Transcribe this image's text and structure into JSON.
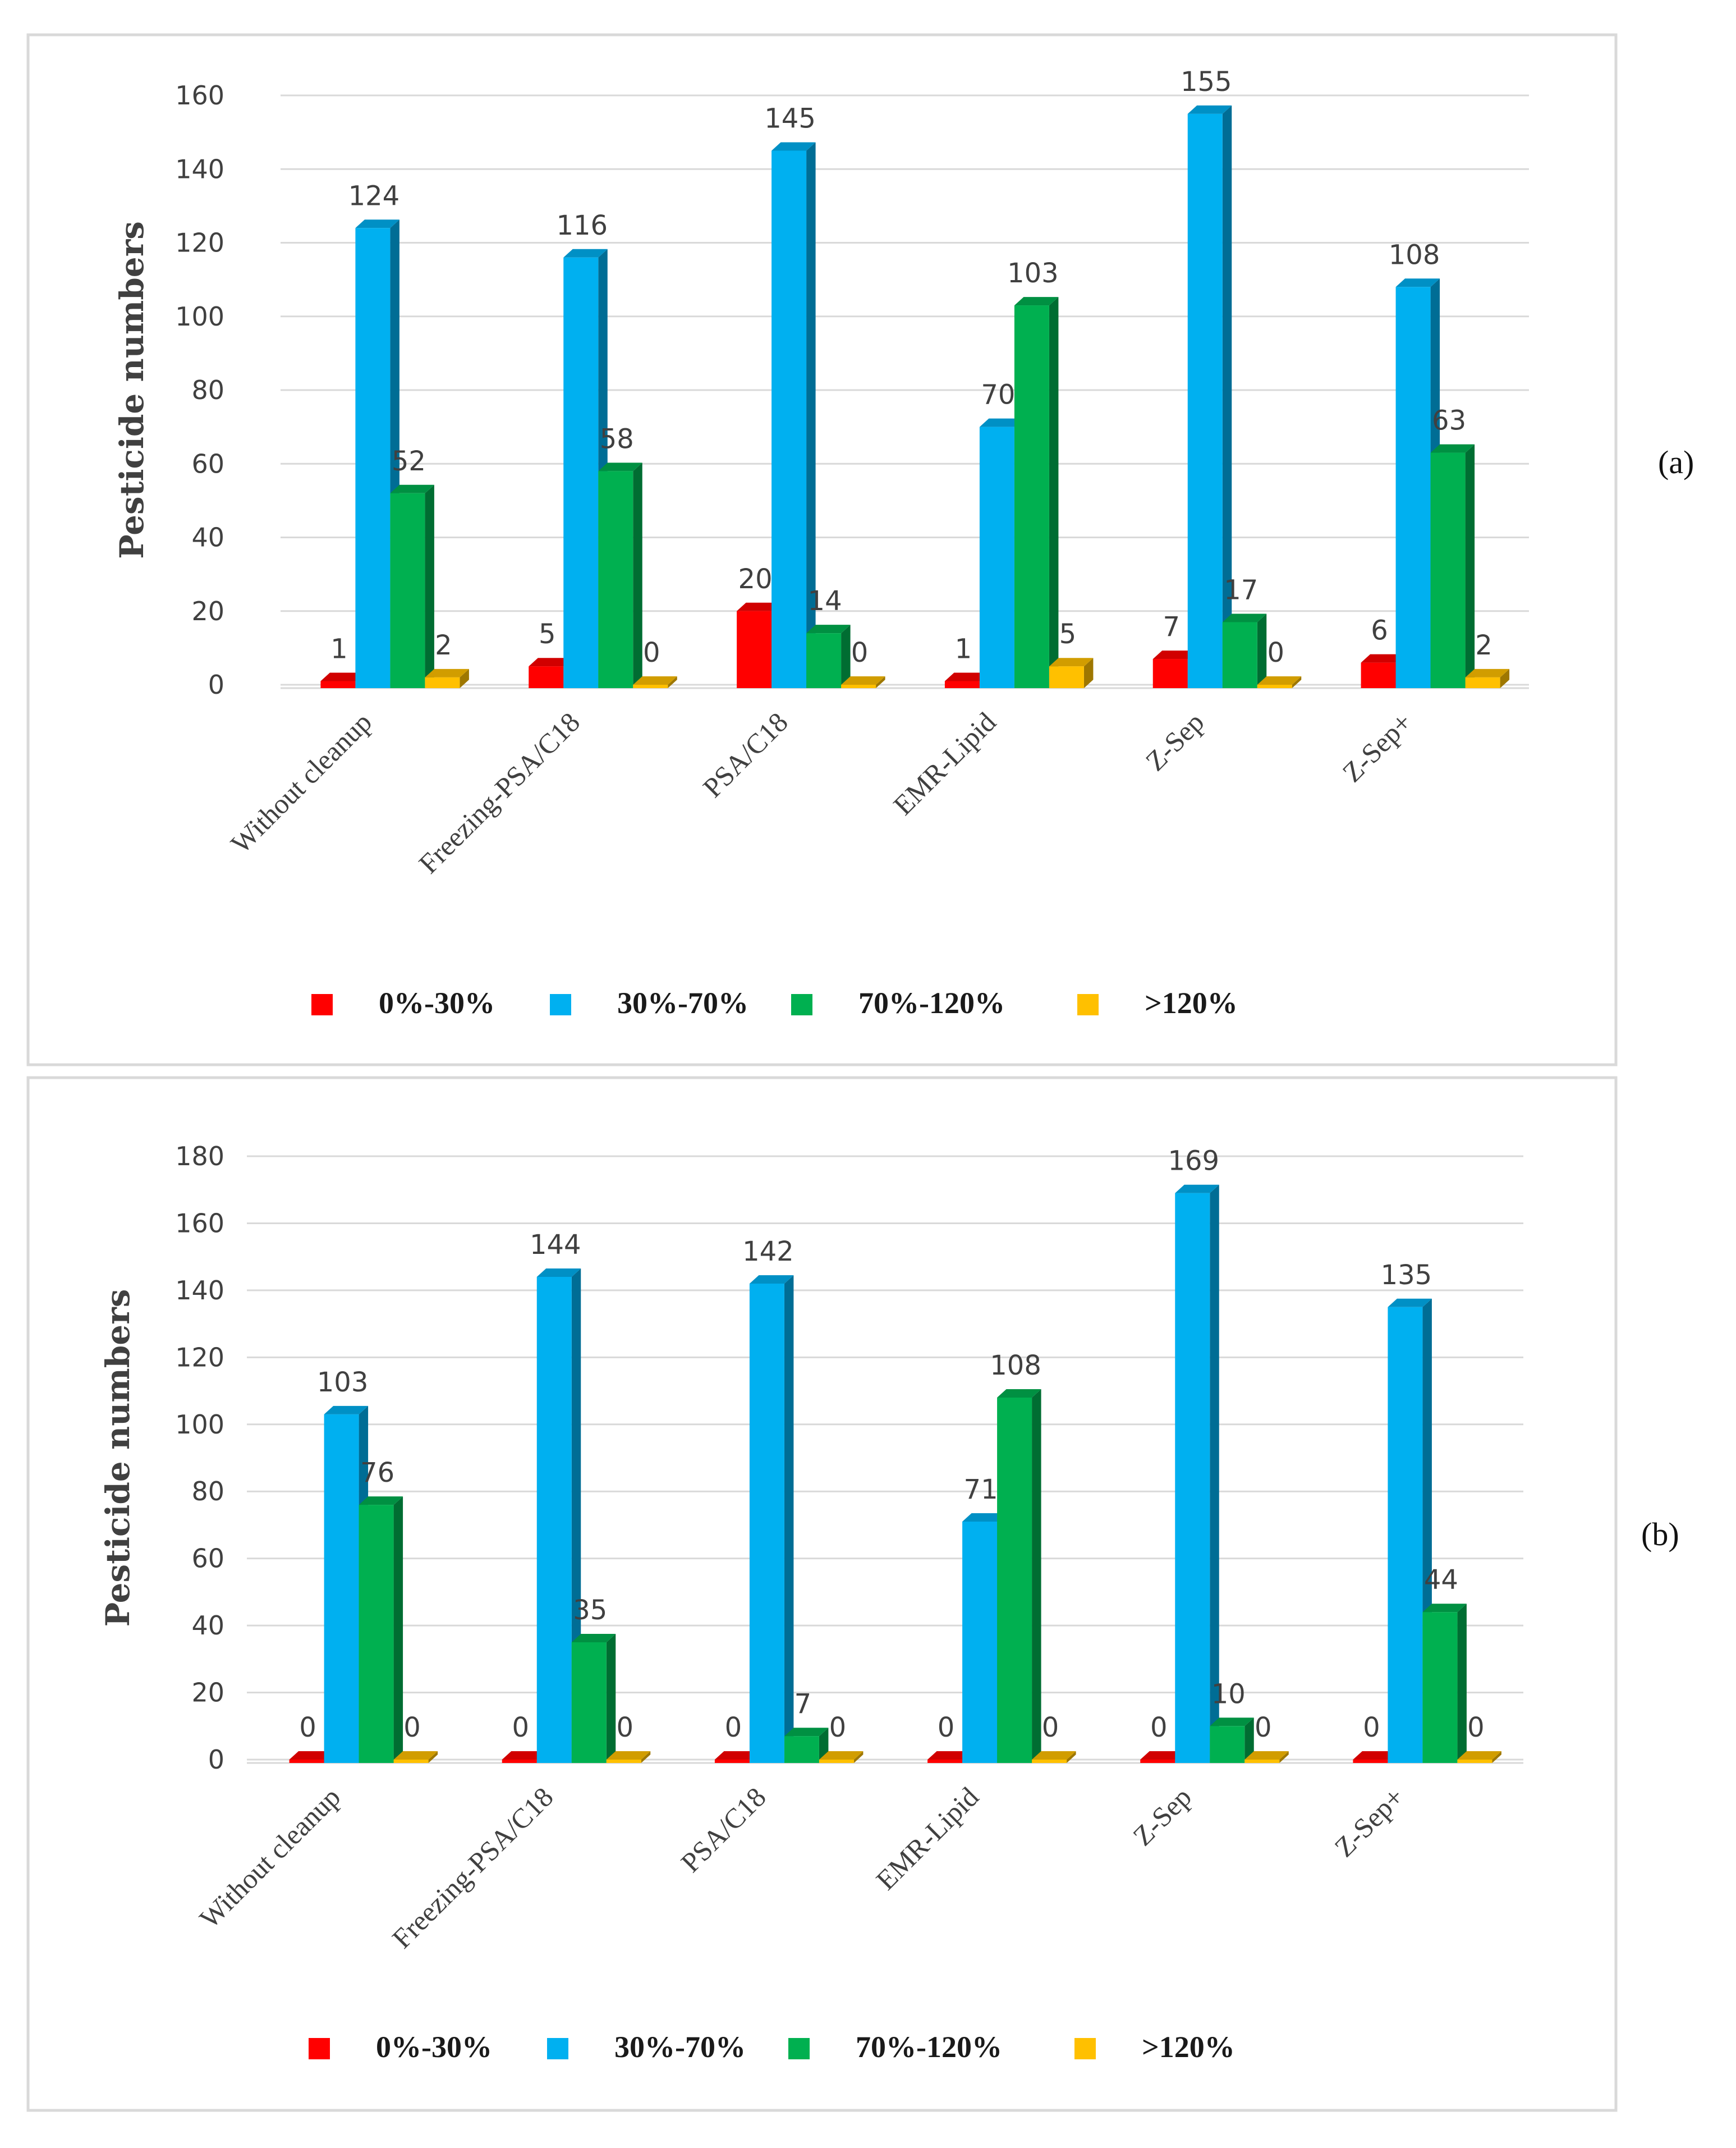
{
  "panels": [
    {
      "label": "a",
      "panel_label_text": "(a)",
      "chart_data": {
        "type": "bar",
        "ylabel": "Pesticide numbers",
        "xlabel": "",
        "ylim": [
          0,
          160
        ],
        "yticks": [
          0,
          20,
          40,
          60,
          80,
          100,
          120,
          140,
          160
        ],
        "categories": [
          "Without cleanup",
          "Freezing-PSA/C18",
          "PSA/C18",
          "EMR-Lipid",
          "Z-Sep",
          "Z-Sep+"
        ],
        "series": [
          {
            "name": "0%-30%",
            "color": "#ff0000",
            "values": [
              1,
              5,
              20,
              1,
              7,
              6
            ]
          },
          {
            "name": "30%-70%",
            "color": "#00b0f0",
            "values": [
              124,
              116,
              145,
              70,
              155,
              108
            ]
          },
          {
            "name": "70%-120%",
            "color": "#00b050",
            "values": [
              52,
              58,
              14,
              103,
              17,
              63
            ]
          },
          {
            "name": ">120%",
            "color": "#ffc000",
            "values": [
              2,
              0,
              0,
              5,
              0,
              2
            ]
          }
        ],
        "legend_position": "bottom"
      }
    },
    {
      "label": "b",
      "panel_label_text": "(b)",
      "chart_data": {
        "type": "bar",
        "ylabel": "Pesticide numbers",
        "xlabel": "",
        "ylim": [
          0,
          180
        ],
        "yticks": [
          0,
          20,
          40,
          60,
          80,
          100,
          120,
          140,
          160,
          180
        ],
        "categories": [
          "Without cleanup",
          "Freezing-PSA/C18",
          "PSA/C18",
          "EMR-Lipid",
          "Z-Sep",
          "Z-Sep+"
        ],
        "series": [
          {
            "name": "0%-30%",
            "color": "#ff0000",
            "values": [
              0,
              0,
              0,
              0,
              0,
              0
            ]
          },
          {
            "name": "30%-70%",
            "color": "#00b0f0",
            "values": [
              103,
              144,
              142,
              71,
              169,
              135
            ]
          },
          {
            "name": "70%-120%",
            "color": "#00b050",
            "values": [
              76,
              35,
              7,
              108,
              10,
              44
            ]
          },
          {
            "name": ">120%",
            "color": "#ffc000",
            "values": [
              0,
              0,
              0,
              0,
              0,
              0
            ]
          }
        ],
        "legend_position": "bottom"
      }
    }
  ]
}
